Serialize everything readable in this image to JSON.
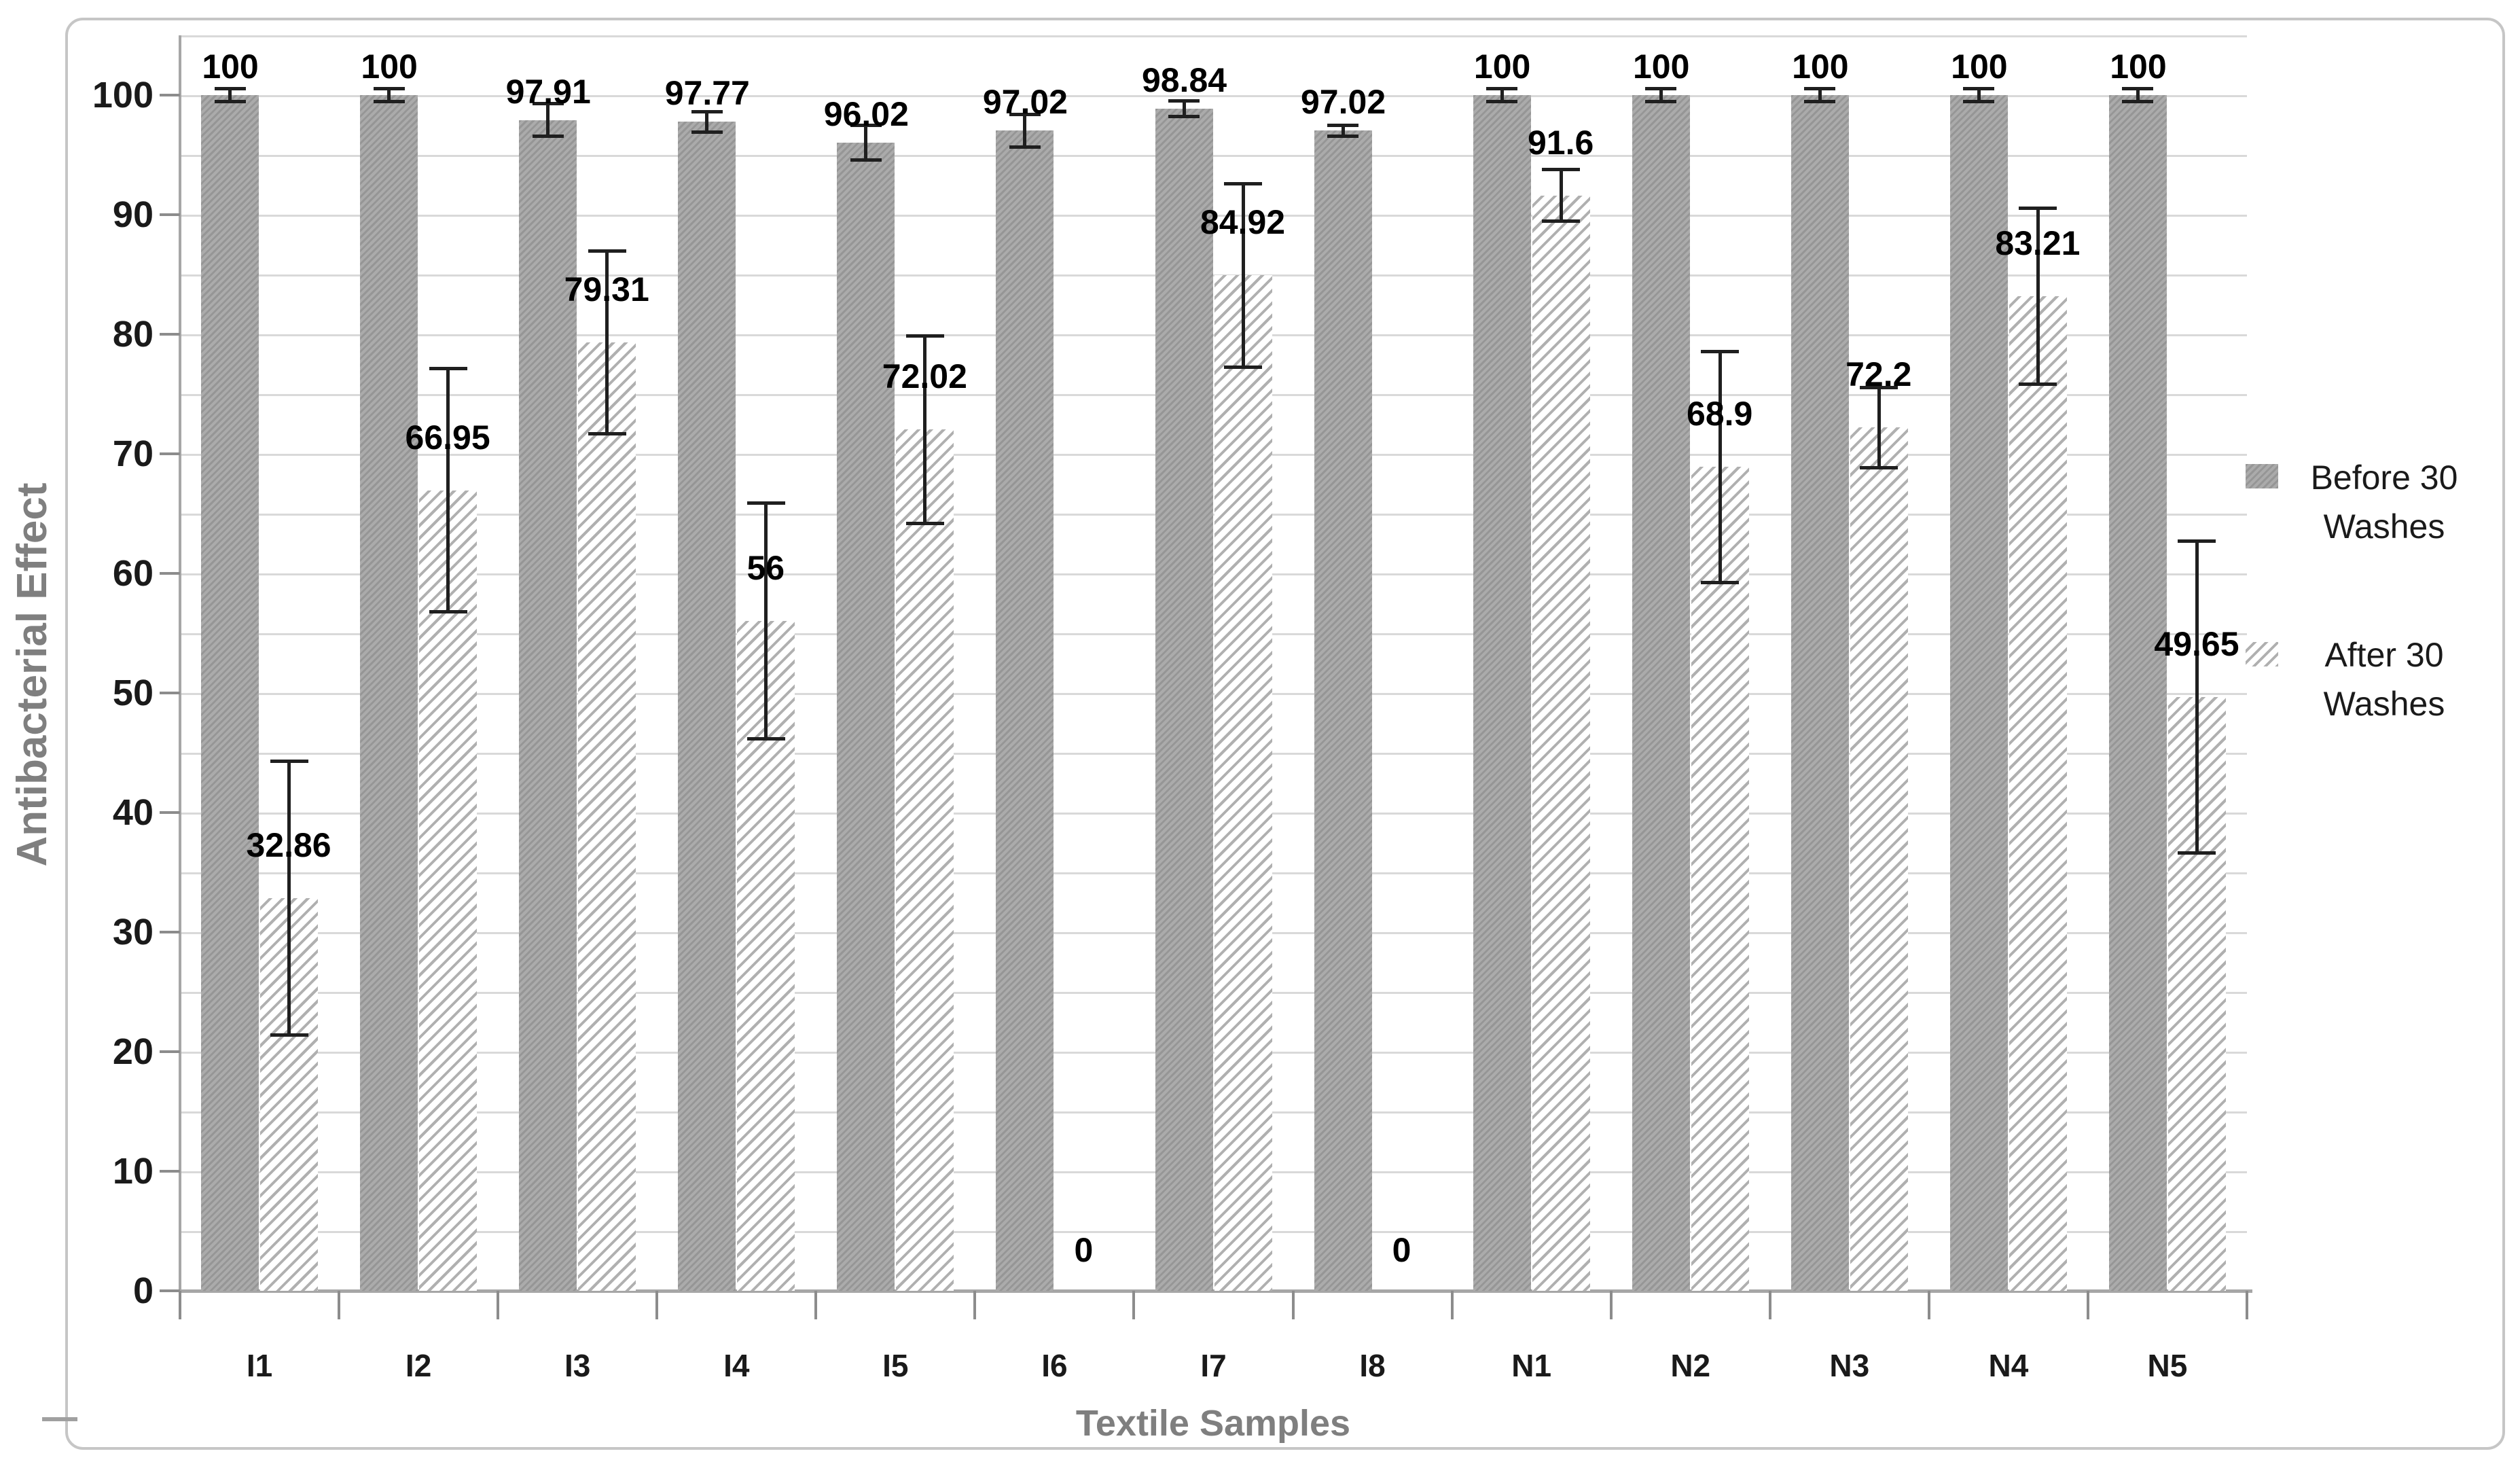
{
  "titles": {
    "y_axis": "Antibacterial Effect",
    "x_axis": "Textile Samples"
  },
  "legend": [
    {
      "name": "Before 30 Washes",
      "lines": [
        "Before 30",
        "Washes"
      ],
      "pattern": "dense-gray-diagonal-hatch"
    },
    {
      "name": "After 30 Washes",
      "lines": [
        "After 30",
        "Washes"
      ],
      "pattern": "light-gray-diagonal-stripes-on-white"
    }
  ],
  "chart_data": {
    "type": "bar",
    "title": "",
    "xlabel": "Textile Samples",
    "ylabel": "Antibacterial Effect",
    "categories": [
      "I1",
      "I2",
      "I3",
      "I4",
      "I5",
      "I6",
      "I7",
      "I8",
      "N1",
      "N2",
      "N3",
      "N4",
      "N5"
    ],
    "series": [
      {
        "name": "Before 30 Washes",
        "values": [
          100,
          100,
          97.91,
          97.77,
          96.02,
          97.02,
          98.84,
          97.02,
          100,
          100,
          100,
          100,
          100
        ],
        "labels": [
          "100",
          "100",
          "97.91",
          "97.77",
          "96.02",
          "97.02",
          "98.84",
          "97.02",
          "100",
          "100",
          "100",
          "100",
          "100"
        ],
        "error_plus_minus": [
          0.7,
          0.7,
          1.5,
          1.0,
          1.6,
          1.5,
          0.8,
          0.6,
          0.7,
          0.7,
          0.7,
          0.7,
          0.7
        ]
      },
      {
        "name": "After 30 Washes",
        "values": [
          32.86,
          66.95,
          79.31,
          56,
          72.02,
          0,
          84.92,
          0,
          91.6,
          68.9,
          72.2,
          83.21,
          49.65
        ],
        "labels": [
          "32.86",
          "66.95",
          "79.31",
          "56",
          "72.02",
          "0",
          "84.92",
          "0",
          "91.6",
          "68.9",
          "72.2",
          "83.21",
          "49.65"
        ],
        "error_plus_minus": [
          11.6,
          10.3,
          7.8,
          10,
          8,
          null,
          7.8,
          null,
          2.3,
          9.8,
          3.5,
          7.5,
          13.2
        ]
      }
    ],
    "yticks": [
      0,
      10,
      20,
      30,
      40,
      50,
      60,
      70,
      80,
      90,
      100
    ],
    "ylim": [
      0,
      105
    ],
    "grid": true,
    "grid_step": 5,
    "legend_position": "right"
  },
  "colors": {
    "before_bar_dark": "#969696",
    "before_bar_light": "#ababab",
    "after_bar_stripe": "#b0b0b0",
    "after_bar_bg": "#ffffff",
    "gridline": "#d9d9d9",
    "axis_line": "#a6a6a6",
    "tick_mark": "#8c8c8c",
    "error_bar": "#1f1f1f",
    "data_label": "#000000",
    "tick_label": "#1a1a1a",
    "axis_title": "#7f7f7f",
    "legend_text": "#1a1a1a",
    "chart_border": "#c6c6c6"
  }
}
